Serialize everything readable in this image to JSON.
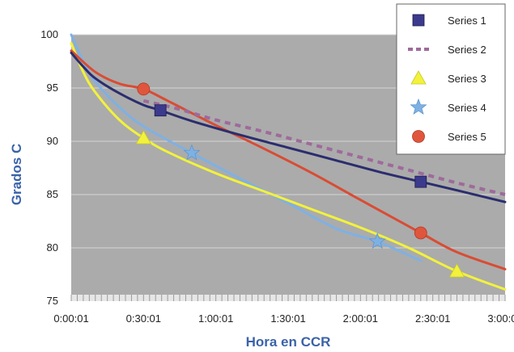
{
  "chart_data": {
    "type": "line",
    "title": "",
    "xlabel": "Hora en CCR",
    "ylabel": "Grados C",
    "x_ticks": [
      "0:00:01",
      "0:30:01",
      "1:00:01",
      "1:30:01",
      "2:00:01",
      "2:30:01",
      "3:00:01"
    ],
    "x_unit": "minutes",
    "xlim": [
      0,
      180
    ],
    "ylim": [
      75,
      100
    ],
    "y_ticks": [
      "75",
      "80",
      "85",
      "90",
      "95",
      "100"
    ],
    "grid": true,
    "legend_position": "top-right",
    "plot_background": "#ababab",
    "series": [
      {
        "name": "Series 1",
        "color": "#2b2d6e",
        "line_style": "solid",
        "marker": "square",
        "marker_color": "#3b3a8c",
        "points": [
          [
            0,
            98.3
          ],
          [
            5,
            97.0
          ],
          [
            10,
            95.9
          ],
          [
            20,
            94.5
          ],
          [
            30,
            93.4
          ],
          [
            37,
            92.9
          ],
          [
            50,
            91.9
          ],
          [
            70,
            90.6
          ],
          [
            90,
            89.4
          ],
          [
            110,
            88.2
          ],
          [
            130,
            87.0
          ],
          [
            145,
            86.2
          ],
          [
            160,
            85.4
          ],
          [
            180,
            84.3
          ]
        ],
        "markers": [
          [
            37,
            92.9
          ],
          [
            145,
            86.2
          ]
        ]
      },
      {
        "name": "Series 2",
        "color": "#9e6a9b",
        "line_style": "dotted",
        "marker": "none",
        "points": [
          [
            30,
            93.8
          ],
          [
            45,
            93.0
          ],
          [
            60,
            92.0
          ],
          [
            80,
            90.9
          ],
          [
            100,
            89.7
          ],
          [
            120,
            88.5
          ],
          [
            140,
            87.3
          ],
          [
            160,
            86.1
          ],
          [
            180,
            85.0
          ]
        ]
      },
      {
        "name": "Series 3",
        "color": "#f2f23c",
        "line_style": "solid",
        "marker": "triangle",
        "marker_color": "#f2f23c",
        "points": [
          [
            0,
            99.2
          ],
          [
            5,
            96.5
          ],
          [
            10,
            94.6
          ],
          [
            20,
            92.0
          ],
          [
            30,
            90.3
          ],
          [
            40,
            89.0
          ],
          [
            60,
            87.0
          ],
          [
            80,
            85.3
          ],
          [
            100,
            83.6
          ],
          [
            120,
            81.9
          ],
          [
            140,
            80.0
          ],
          [
            160,
            77.8
          ],
          [
            180,
            76.1
          ]
        ],
        "markers": [
          [
            30,
            90.3
          ],
          [
            160,
            77.8
          ]
        ]
      },
      {
        "name": "Series 4",
        "color": "#7eb1e3",
        "line_style": "solid",
        "marker": "star",
        "marker_color": "#7eb1e3",
        "points": [
          [
            0,
            100.0
          ],
          [
            5,
            97.5
          ],
          [
            10,
            95.6
          ],
          [
            20,
            93.2
          ],
          [
            30,
            91.4
          ],
          [
            50,
            88.9
          ],
          [
            70,
            86.5
          ],
          [
            90,
            84.2
          ],
          [
            110,
            81.8
          ],
          [
            127,
            80.6
          ],
          [
            145,
            78.8
          ]
        ],
        "markers": [
          [
            50,
            88.9
          ],
          [
            127,
            80.6
          ]
        ]
      },
      {
        "name": "Series 5",
        "color": "#d94c34",
        "line_style": "solid",
        "marker": "circle",
        "marker_color": "#e0563c",
        "points": [
          [
            0,
            98.5
          ],
          [
            10,
            96.5
          ],
          [
            20,
            95.4
          ],
          [
            30,
            94.9
          ],
          [
            40,
            93.8
          ],
          [
            60,
            91.5
          ],
          [
            80,
            89.3
          ],
          [
            100,
            87.0
          ],
          [
            120,
            84.5
          ],
          [
            145,
            81.4
          ],
          [
            160,
            79.6
          ],
          [
            180,
            78.0
          ]
        ],
        "markers": [
          [
            30,
            94.9
          ],
          [
            145,
            81.4
          ]
        ]
      }
    ]
  }
}
